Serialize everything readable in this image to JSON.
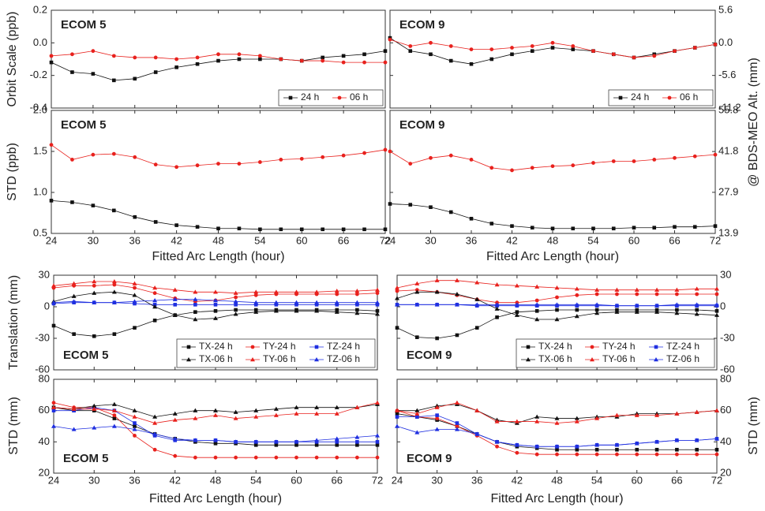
{
  "chart_data": [
    {
      "type": "line",
      "title": "ECOM 5",
      "ylabel": "Orbit Scale (ppb)",
      "legend": "lower right",
      "x": [
        24,
        27,
        30,
        33,
        36,
        39,
        42,
        45,
        48,
        51,
        54,
        57,
        60,
        63,
        66,
        69,
        72
      ],
      "xlim": [
        24,
        72
      ],
      "xticks": [
        24,
        30,
        36,
        42,
        48,
        54,
        60,
        66,
        72
      ],
      "ylim": [
        -0.4,
        0.2
      ],
      "yticks": [
        -0.4,
        -0.2,
        {
          "value": 0,
          "label": "0.0"
        },
        0.2
      ],
      "series": [
        {
          "name": "24 h",
          "color": "#111111",
          "marker": "square",
          "values": [
            -0.12,
            -0.18,
            -0.19,
            -0.23,
            -0.22,
            -0.18,
            -0.15,
            -0.13,
            -0.11,
            -0.1,
            -0.1,
            -0.1,
            -0.11,
            -0.09,
            -0.08,
            -0.07,
            -0.05
          ]
        },
        {
          "name": "06 h",
          "color": "#e8211d",
          "marker": "circle",
          "values": [
            -0.08,
            -0.07,
            -0.05,
            -0.08,
            -0.09,
            -0.09,
            -0.1,
            -0.09,
            -0.07,
            -0.07,
            -0.08,
            -0.1,
            -0.11,
            -0.11,
            -0.12,
            -0.12,
            -0.12
          ]
        }
      ]
    },
    {
      "type": "line",
      "title": "ECOM 9",
      "y2label": "@ BDS-MEO Alt. (mm)",
      "legend": "lower right",
      "x": [
        24,
        27,
        30,
        33,
        36,
        39,
        42,
        45,
        48,
        51,
        54,
        57,
        60,
        63,
        66,
        69,
        72
      ],
      "xlim": [
        24,
        72
      ],
      "xticks": [
        24,
        30,
        36,
        42,
        48,
        54,
        60,
        66,
        72
      ],
      "ylim": [
        -0.4,
        0.2
      ],
      "yticks": [
        -0.4,
        -0.2,
        0,
        0.2
      ],
      "y2lim": [
        -11.2,
        5.6
      ],
      "y2ticks": [
        -11.2,
        -5.6,
        {
          "value": 0,
          "label": "0.0"
        },
        5.6
      ],
      "series": [
        {
          "name": "24 h",
          "color": "#111111",
          "marker": "square",
          "values": [
            0.03,
            -0.05,
            -0.07,
            -0.11,
            -0.13,
            -0.1,
            -0.07,
            -0.05,
            -0.03,
            -0.04,
            -0.05,
            -0.07,
            -0.09,
            -0.07,
            -0.05,
            -0.03,
            -0.01
          ]
        },
        {
          "name": "06 h",
          "color": "#e8211d",
          "marker": "circle",
          "values": [
            0.02,
            -0.02,
            0.0,
            -0.02,
            -0.04,
            -0.04,
            -0.03,
            -0.02,
            0.0,
            -0.02,
            -0.05,
            -0.07,
            -0.09,
            -0.08,
            -0.05,
            -0.03,
            -0.01
          ]
        }
      ]
    },
    {
      "type": "line",
      "title": "ECOM 5",
      "ylabel": "STD (ppb)",
      "xlabel": "Fitted Arc Length (hour)",
      "x": [
        24,
        27,
        30,
        33,
        36,
        39,
        42,
        45,
        48,
        51,
        54,
        57,
        60,
        63,
        66,
        69,
        72
      ],
      "xlim": [
        24,
        72
      ],
      "xticks": [
        24,
        30,
        36,
        42,
        48,
        54,
        60,
        66,
        72
      ],
      "ylim": [
        0.5,
        2.0
      ],
      "yticks": [
        0.5,
        {
          "value": 1,
          "label": "1.0"
        },
        1.5,
        {
          "value": 2,
          "label": "2.0"
        }
      ],
      "series": [
        {
          "color": "#111111",
          "marker": "square",
          "values": [
            0.9,
            0.88,
            0.84,
            0.78,
            0.7,
            0.64,
            0.6,
            0.58,
            0.56,
            0.56,
            0.55,
            0.55,
            0.55,
            0.55,
            0.55,
            0.55,
            0.55
          ]
        },
        {
          "color": "#e8211d",
          "marker": "circle",
          "values": [
            1.58,
            1.4,
            1.46,
            1.47,
            1.43,
            1.34,
            1.31,
            1.33,
            1.35,
            1.35,
            1.37,
            1.4,
            1.41,
            1.43,
            1.45,
            1.48,
            1.52
          ]
        }
      ]
    },
    {
      "type": "line",
      "title": "ECOM 9",
      "xlabel": "Fitted Arc Length (hour)",
      "x": [
        24,
        27,
        30,
        33,
        36,
        39,
        42,
        45,
        48,
        51,
        54,
        57,
        60,
        63,
        66,
        69,
        72
      ],
      "xlim": [
        24,
        72
      ],
      "xticks": [
        24,
        30,
        36,
        42,
        48,
        54,
        60,
        66,
        72
      ],
      "ylim": [
        0.5,
        2.0
      ],
      "yticks": [
        0.5,
        1,
        1.5,
        2
      ],
      "y2lim": [
        13.9,
        55.8
      ],
      "y2ticks": [
        13.9,
        27.9,
        41.8,
        55.8
      ],
      "series": [
        {
          "color": "#111111",
          "marker": "square",
          "values": [
            0.86,
            0.85,
            0.82,
            0.76,
            0.68,
            0.62,
            0.59,
            0.57,
            0.56,
            0.56,
            0.56,
            0.56,
            0.57,
            0.57,
            0.58,
            0.58,
            0.59
          ]
        },
        {
          "color": "#e8211d",
          "marker": "circle",
          "values": [
            1.5,
            1.35,
            1.42,
            1.45,
            1.4,
            1.3,
            1.27,
            1.3,
            1.32,
            1.33,
            1.36,
            1.38,
            1.38,
            1.4,
            1.42,
            1.44,
            1.46
          ]
        }
      ]
    },
    {
      "type": "line",
      "title": "ECOM 5",
      "ylabel": "Translation (mm)",
      "legend": "lower right",
      "x": [
        24,
        27,
        30,
        33,
        36,
        39,
        42,
        45,
        48,
        51,
        54,
        57,
        60,
        63,
        66,
        69,
        72
      ],
      "xlim": [
        24,
        72
      ],
      "xticks": [
        24,
        30,
        36,
        42,
        48,
        54,
        60,
        66,
        72
      ],
      "ylim": [
        -60,
        30
      ],
      "yticks": [
        -60,
        -30,
        0,
        30
      ],
      "series": [
        {
          "name": "TX-24 h",
          "color": "#111111",
          "marker": "square",
          "values": [
            -18,
            -26,
            -28,
            -26,
            -20,
            -13,
            -8,
            -5,
            -4,
            -3,
            -3,
            -3,
            -3,
            -3,
            -3,
            -3,
            -4
          ]
        },
        {
          "name": "TY-24 h",
          "color": "#e8211d",
          "marker": "circle",
          "values": [
            18,
            20,
            20,
            21,
            18,
            13,
            8,
            5,
            6,
            9,
            11,
            12,
            12,
            12,
            12,
            12,
            13
          ]
        },
        {
          "name": "TZ-24 h",
          "color": "#1f2fe0",
          "marker": "square",
          "values": [
            3,
            4,
            4,
            4,
            3,
            2,
            2,
            2,
            2,
            2,
            2,
            2,
            2,
            2,
            2,
            2,
            2
          ]
        },
        {
          "name": "TX-06 h",
          "color": "#111111",
          "marker": "triangle",
          "values": [
            5,
            10,
            13,
            14,
            11,
            0,
            -8,
            -12,
            -11,
            -7,
            -5,
            -4,
            -4,
            -4,
            -5,
            -6,
            -7
          ]
        },
        {
          "name": "TY-06 h",
          "color": "#e8211d",
          "marker": "triangle",
          "values": [
            20,
            22,
            24,
            24,
            22,
            18,
            16,
            14,
            14,
            13,
            14,
            14,
            14,
            14,
            15,
            15,
            16
          ]
        },
        {
          "name": "TZ-06 h",
          "color": "#1f2fe0",
          "marker": "triangle",
          "values": [
            4,
            5,
            4,
            4,
            5,
            6,
            7,
            7,
            6,
            5,
            4,
            4,
            4,
            4,
            4,
            4,
            4
          ]
        }
      ]
    },
    {
      "type": "line",
      "title": "ECOM 9",
      "legend": "lower right",
      "x": [
        24,
        27,
        30,
        33,
        36,
        39,
        42,
        45,
        48,
        51,
        54,
        57,
        60,
        63,
        66,
        69,
        72
      ],
      "xlim": [
        24,
        72
      ],
      "xticks": [
        24,
        30,
        36,
        42,
        48,
        54,
        60,
        66,
        72
      ],
      "ylim": [
        -60,
        30
      ],
      "yticks": [
        -60,
        -30,
        0,
        30
      ],
      "y2lim": [
        -60,
        30
      ],
      "y2ticks": [
        -60,
        -30,
        0,
        30
      ],
      "series": [
        {
          "name": "TX-24 h",
          "color": "#111111",
          "marker": "square",
          "values": [
            -20,
            -29,
            -30,
            -27,
            -20,
            -10,
            -5,
            -4,
            -3,
            -3,
            -3,
            -3,
            -3,
            -3,
            -3,
            -3,
            -4
          ]
        },
        {
          "name": "TY-24 h",
          "color": "#e8211d",
          "marker": "circle",
          "values": [
            15,
            16,
            14,
            11,
            7,
            4,
            4,
            6,
            9,
            11,
            12,
            12,
            12,
            12,
            12,
            12,
            12
          ]
        },
        {
          "name": "TZ-24 h",
          "color": "#1f2fe0",
          "marker": "square",
          "values": [
            2,
            2,
            2,
            2,
            1,
            1,
            1,
            1,
            1,
            1,
            1,
            1,
            1,
            1,
            1,
            1,
            1
          ]
        },
        {
          "name": "TX-06 h",
          "color": "#111111",
          "marker": "triangle",
          "values": [
            8,
            14,
            14,
            12,
            7,
            -2,
            -8,
            -12,
            -12,
            -9,
            -6,
            -5,
            -5,
            -5,
            -6,
            -7,
            -8
          ]
        },
        {
          "name": "TY-06 h",
          "color": "#e8211d",
          "marker": "triangle",
          "values": [
            18,
            22,
            25,
            25,
            23,
            21,
            20,
            19,
            18,
            17,
            16,
            16,
            16,
            16,
            16,
            17,
            17
          ]
        },
        {
          "name": "TZ-06 h",
          "color": "#1f2fe0",
          "marker": "triangle",
          "values": [
            2,
            2,
            2,
            2,
            2,
            2,
            2,
            2,
            2,
            2,
            2,
            1,
            1,
            1,
            2,
            2,
            2
          ]
        }
      ]
    },
    {
      "type": "line",
      "title": "ECOM 5",
      "ylabel": "STD (mm)",
      "xlabel": "Fitted Arc Length (hour)",
      "x": [
        24,
        27,
        30,
        33,
        36,
        39,
        42,
        45,
        48,
        51,
        54,
        57,
        60,
        63,
        66,
        69,
        72
      ],
      "xlim": [
        24,
        72
      ],
      "xticks": [
        24,
        30,
        36,
        42,
        48,
        54,
        60,
        66,
        72
      ],
      "ylim": [
        20,
        80
      ],
      "yticks": [
        20,
        40,
        60,
        80
      ],
      "series": [
        {
          "color": "#111111",
          "marker": "square",
          "values": [
            62,
            60,
            60,
            55,
            50,
            45,
            42,
            40,
            39,
            39,
            38,
            38,
            38,
            38,
            38,
            38,
            38
          ]
        },
        {
          "color": "#e8211d",
          "marker": "circle",
          "values": [
            65,
            62,
            62,
            57,
            44,
            35,
            31,
            30,
            30,
            30,
            30,
            30,
            30,
            30,
            30,
            30,
            30
          ]
        },
        {
          "color": "#1f2fe0",
          "marker": "square",
          "values": [
            60,
            60,
            62,
            60,
            52,
            44,
            41,
            41,
            41,
            40,
            40,
            40,
            40,
            40,
            40,
            40,
            40
          ]
        },
        {
          "color": "#111111",
          "marker": "triangle",
          "values": [
            62,
            61,
            63,
            64,
            60,
            56,
            58,
            60,
            60,
            59,
            60,
            61,
            62,
            62,
            62,
            62,
            64
          ]
        },
        {
          "color": "#e8211d",
          "marker": "triangle",
          "values": [
            62,
            61,
            61,
            60,
            56,
            52,
            54,
            55,
            57,
            55,
            56,
            57,
            58,
            58,
            58,
            62,
            65
          ]
        },
        {
          "color": "#1f2fe0",
          "marker": "triangle",
          "values": [
            50,
            48,
            49,
            50,
            48,
            45,
            42,
            41,
            41,
            40,
            40,
            40,
            40,
            41,
            42,
            43,
            44
          ]
        }
      ]
    },
    {
      "type": "line",
      "title": "ECOM 9",
      "y2label": "STD (mm)",
      "xlabel": "Fitted Arc Length (hour)",
      "x": [
        24,
        27,
        30,
        33,
        36,
        39,
        42,
        45,
        48,
        51,
        54,
        57,
        60,
        63,
        66,
        69,
        72
      ],
      "xlim": [
        24,
        72
      ],
      "xticks": [
        24,
        30,
        36,
        42,
        48,
        54,
        60,
        66,
        72
      ],
      "ylim": [
        20,
        80
      ],
      "yticks": [
        20,
        40,
        60,
        80
      ],
      "y2lim": [
        20,
        80
      ],
      "y2ticks": [
        20,
        40,
        60,
        80
      ],
      "series": [
        {
          "color": "#111111",
          "marker": "square",
          "values": [
            58,
            56,
            54,
            50,
            45,
            40,
            37,
            36,
            35,
            35,
            35,
            35,
            35,
            35,
            35,
            35,
            35
          ]
        },
        {
          "color": "#e8211d",
          "marker": "circle",
          "values": [
            60,
            56,
            55,
            50,
            44,
            37,
            33,
            32,
            32,
            32,
            32,
            32,
            32,
            32,
            32,
            32,
            32
          ]
        },
        {
          "color": "#1f2fe0",
          "marker": "square",
          "values": [
            56,
            56,
            57,
            52,
            45,
            40,
            38,
            37,
            37,
            37,
            38,
            38,
            39,
            40,
            41,
            41,
            42
          ]
        },
        {
          "color": "#111111",
          "marker": "triangle",
          "values": [
            60,
            60,
            63,
            64,
            60,
            54,
            52,
            56,
            55,
            55,
            56,
            56,
            58,
            58,
            58,
            59,
            60
          ]
        },
        {
          "color": "#e8211d",
          "marker": "triangle",
          "values": [
            60,
            58,
            62,
            65,
            60,
            53,
            53,
            53,
            52,
            53,
            55,
            57,
            57,
            57,
            58,
            59,
            60
          ]
        },
        {
          "color": "#1f2fe0",
          "marker": "triangle",
          "values": [
            50,
            46,
            48,
            48,
            45,
            40,
            38,
            37,
            37,
            37,
            38,
            38,
            39,
            40,
            41,
            41,
            42
          ]
        }
      ]
    }
  ]
}
